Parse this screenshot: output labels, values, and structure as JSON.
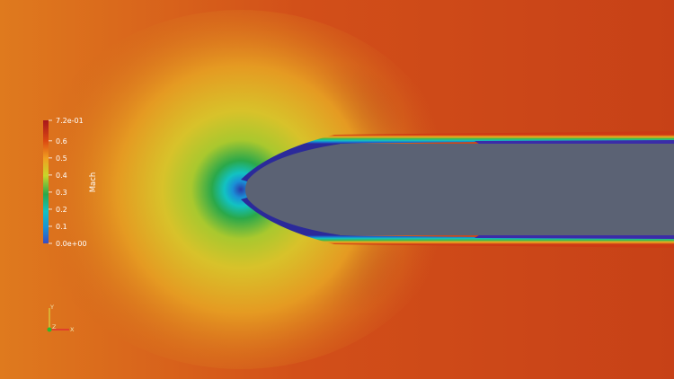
{
  "legend": {
    "title": "Mach",
    "ticks": [
      "7.2e-01",
      "0.6",
      "0.5",
      "0.4",
      "0.3",
      "0.2",
      "0.1",
      "0.0e+00"
    ],
    "tick_values": [
      0.72,
      0.6,
      0.5,
      0.4,
      0.3,
      0.2,
      0.1,
      0.0
    ],
    "range": [
      0.0,
      0.72
    ],
    "colormap": [
      "#3b4cc0",
      "#1a8fd6",
      "#12c2c2",
      "#2aa84a",
      "#c8d629",
      "#f0a020",
      "#dc4a12",
      "#a8161c"
    ]
  },
  "orientation_axes": {
    "y_label": "Y",
    "z_label": "Z",
    "x_label": "X",
    "y_color": "#d8c23a",
    "x_color": "#e03030",
    "z_color": "#2db82d"
  },
  "body_color": "#5b6274",
  "freestream_color": "#d2511b"
}
